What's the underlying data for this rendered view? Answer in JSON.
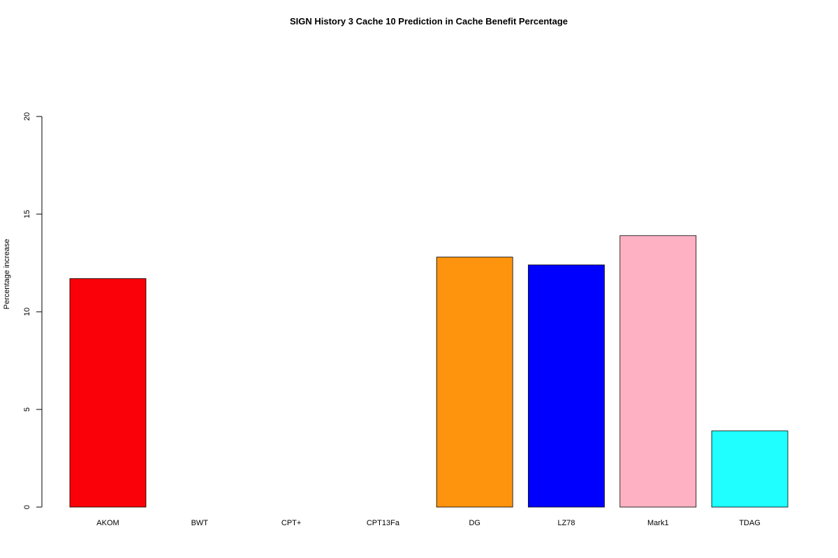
{
  "chart_data": {
    "type": "bar",
    "title": "SIGN  History  3  Cache  10 Prediction in Cache Benefit Percentage",
    "xlabel": "",
    "ylabel": "Percentage increase",
    "ylim": [
      0,
      20
    ],
    "yticks": [
      "0",
      "5",
      "10",
      "15",
      "20"
    ],
    "categories": [
      "AKOM",
      "BWT",
      "CPT+",
      "CPT13Fa",
      "DG",
      "LZ78",
      "Mark1",
      "TDAG"
    ],
    "values": [
      11.7,
      0,
      0,
      0,
      12.8,
      12.4,
      13.9,
      3.9
    ],
    "colors": [
      "#fa0008",
      "#ffffff",
      "#ffffff",
      "#ffffff",
      "#fe930d",
      "#0000ff",
      "#fdb1c3",
      "#1fffff"
    ],
    "grid": false,
    "legend": "none"
  }
}
